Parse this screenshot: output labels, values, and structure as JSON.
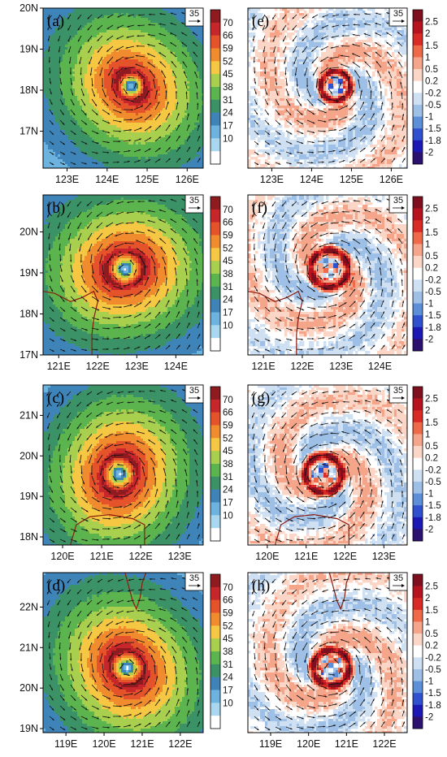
{
  "chart_data": {
    "type": "heatmap",
    "panels": [
      {
        "letter": "(a)",
        "field": "wind_speed",
        "colormap": "speed",
        "x_ticks": [
          "123E",
          "124E",
          "125E",
          "126E"
        ],
        "y_ticks": [
          "20N",
          "19N",
          "18N",
          "17N"
        ],
        "xlim": [
          122.4,
          126.4
        ],
        "ylim": [
          16.1,
          20.0
        ],
        "center": [
          124.6,
          18.1
        ],
        "eye_radius_deg": 0.15,
        "rmw_deg": 0.35,
        "coast": [],
        "ref_vector": "35"
      },
      {
        "letter": "(e)",
        "field": "divergence",
        "colormap": "anomaly",
        "x_ticks": [
          "123E",
          "124E",
          "125E",
          "126E"
        ],
        "xlim": [
          122.4,
          126.4
        ],
        "ylim": [
          16.1,
          20.0
        ],
        "center": [
          124.6,
          18.1
        ],
        "eye_radius_deg": 0.15,
        "rmw_deg": 0.35,
        "coast": [],
        "ref_vector": "35"
      },
      {
        "letter": "(b)",
        "field": "wind_speed",
        "colormap": "speed",
        "x_ticks": [
          "121E",
          "122E",
          "123E",
          "124E"
        ],
        "y_ticks": [
          "20N",
          "19N",
          "18N",
          "17N"
        ],
        "xlim": [
          120.6,
          124.7
        ],
        "ylim": [
          17.0,
          20.9
        ],
        "center": [
          122.7,
          19.1
        ],
        "eye_radius_deg": 0.17,
        "rmw_deg": 0.45,
        "coast": [
          [
            [
              120.6,
              18.55
            ],
            [
              120.9,
              18.5
            ],
            [
              121.3,
              18.3
            ],
            [
              121.6,
              18.4
            ],
            [
              121.9,
              18.55
            ],
            [
              122.0,
              18.3
            ],
            [
              121.9,
              17.9
            ],
            [
              121.85,
              17.5
            ],
            [
              121.85,
              17.0
            ]
          ]
        ],
        "ref_vector": "35"
      },
      {
        "letter": "(f)",
        "field": "divergence",
        "colormap": "anomaly",
        "x_ticks": [
          "121E",
          "122E",
          "123E",
          "124E"
        ],
        "xlim": [
          120.6,
          124.7
        ],
        "ylim": [
          17.0,
          20.9
        ],
        "center": [
          122.7,
          19.1
        ],
        "eye_radius_deg": 0.17,
        "rmw_deg": 0.45,
        "coast": [
          [
            [
              120.6,
              18.55
            ],
            [
              120.9,
              18.5
            ],
            [
              121.3,
              18.3
            ],
            [
              121.6,
              18.4
            ],
            [
              121.9,
              18.55
            ],
            [
              122.0,
              18.3
            ],
            [
              121.9,
              17.9
            ],
            [
              121.85,
              17.5
            ],
            [
              121.85,
              17.0
            ]
          ]
        ],
        "ref_vector": "35"
      },
      {
        "letter": "(c)",
        "field": "wind_speed",
        "colormap": "speed",
        "x_ticks": [
          "120E",
          "121E",
          "122E",
          "123E"
        ],
        "y_ticks": [
          "21N",
          "20N",
          "19N",
          "18N"
        ],
        "xlim": [
          119.5,
          123.6
        ],
        "ylim": [
          17.8,
          21.75
        ],
        "center": [
          121.45,
          19.55
        ],
        "eye_radius_deg": 0.17,
        "rmw_deg": 0.45,
        "coast": [
          [
            [
              120.2,
              17.8
            ],
            [
              120.35,
              18.3
            ],
            [
              120.7,
              18.5
            ],
            [
              121.2,
              18.55
            ],
            [
              121.8,
              18.45
            ],
            [
              122.1,
              18.3
            ],
            [
              122.1,
              17.8
            ]
          ]
        ],
        "ref_vector": "35"
      },
      {
        "letter": "(g)",
        "field": "divergence",
        "colormap": "anomaly",
        "x_ticks": [
          "120E",
          "121E",
          "122E",
          "123E"
        ],
        "xlim": [
          119.5,
          123.6
        ],
        "ylim": [
          17.8,
          21.75
        ],
        "center": [
          121.45,
          19.55
        ],
        "eye_radius_deg": 0.17,
        "rmw_deg": 0.45,
        "coast": [
          [
            [
              120.2,
              17.8
            ],
            [
              120.35,
              18.3
            ],
            [
              120.7,
              18.5
            ],
            [
              121.2,
              18.55
            ],
            [
              121.8,
              18.45
            ],
            [
              122.1,
              18.3
            ],
            [
              122.1,
              17.8
            ]
          ]
        ],
        "ref_vector": "35"
      },
      {
        "letter": "(d)",
        "field": "wind_speed",
        "colormap": "speed",
        "x_ticks": [
          "119E",
          "120E",
          "121E",
          "122E"
        ],
        "y_ticks": [
          "22N",
          "21N",
          "20N",
          "19N"
        ],
        "xlim": [
          118.4,
          122.6
        ],
        "ylim": [
          18.9,
          22.85
        ],
        "center": [
          120.6,
          20.5
        ],
        "eye_radius_deg": 0.17,
        "rmw_deg": 0.45,
        "coast": [
          [
            [
              120.55,
              22.85
            ],
            [
              120.65,
              22.5
            ],
            [
              120.75,
              22.15
            ],
            [
              120.85,
              21.95
            ],
            [
              120.95,
              22.25
            ],
            [
              121.0,
              22.6
            ],
            [
              121.1,
              22.85
            ]
          ]
        ],
        "ref_vector": "35"
      },
      {
        "letter": "(h)",
        "field": "divergence",
        "colormap": "anomaly",
        "x_ticks": [
          "119E",
          "120E",
          "121E",
          "122E"
        ],
        "xlim": [
          118.4,
          122.6
        ],
        "ylim": [
          18.9,
          22.85
        ],
        "center": [
          120.6,
          20.5
        ],
        "eye_radius_deg": 0.17,
        "rmw_deg": 0.45,
        "coast": [
          [
            [
              120.55,
              22.85
            ],
            [
              120.65,
              22.5
            ],
            [
              120.75,
              22.15
            ],
            [
              120.85,
              21.95
            ],
            [
              120.95,
              22.25
            ],
            [
              121.0,
              22.6
            ],
            [
              121.1,
              22.85
            ]
          ]
        ],
        "ref_vector": "35"
      }
    ],
    "colorbars": {
      "speed": {
        "labels": [
          "70",
          "66",
          "59",
          "52",
          "45",
          "38",
          "31",
          "24",
          "17",
          "10"
        ],
        "colors": [
          "#8e1b1f",
          "#c7262b",
          "#e5532b",
          "#f08c2e",
          "#f6c742",
          "#a8cf4e",
          "#5cb44e",
          "#3b9266",
          "#3f84b8",
          "#6cb4df",
          "#a9d7f0",
          "#ffffff"
        ]
      },
      "anomaly": {
        "labels": [
          "2.5",
          "2",
          "1.5",
          "1",
          "0.5",
          "0.2",
          "-0.2",
          "-0.5",
          "-1",
          "-1.5",
          "-1.8",
          "-2"
        ],
        "colors": [
          "#7d0f1f",
          "#b7131f",
          "#d92b25",
          "#ee6a48",
          "#f4a58a",
          "#fbd6c6",
          "#ffffff",
          "#cfe0f3",
          "#9ec0e6",
          "#5d8fd8",
          "#2f50cf",
          "#1c18b4",
          "#2c1070"
        ]
      }
    }
  }
}
